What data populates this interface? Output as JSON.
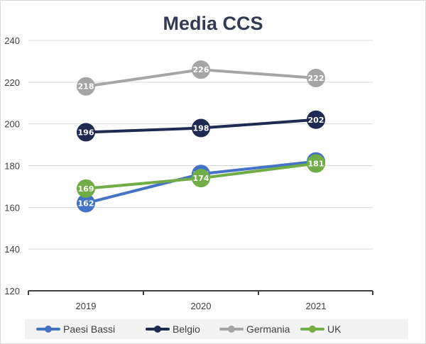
{
  "chart_data": {
    "type": "line",
    "title": "Media CCS",
    "categories": [
      "2019",
      "2020",
      "2021"
    ],
    "ylim": [
      120,
      240
    ],
    "yticks": [
      120,
      140,
      160,
      180,
      200,
      220,
      240
    ],
    "grid": true,
    "legend_position": "bottom",
    "series": [
      {
        "name": "Paesi Bassi",
        "color": "#4472c4",
        "values": [
          162,
          176,
          182
        ],
        "labels": [
          "162",
          "176",
          "182"
        ]
      },
      {
        "name": "Belgio",
        "color": "#1f2a52",
        "values": [
          196,
          198,
          202
        ],
        "labels": [
          "196",
          "198",
          "202"
        ]
      },
      {
        "name": "Germania",
        "color": "#a5a5a5",
        "values": [
          218,
          226,
          222
        ],
        "labels": [
          "218",
          "226",
          "222"
        ]
      },
      {
        "name": "UK",
        "color": "#70ad47",
        "values": [
          169,
          174,
          181
        ],
        "labels": [
          "169",
          "174",
          "181"
        ]
      }
    ]
  }
}
